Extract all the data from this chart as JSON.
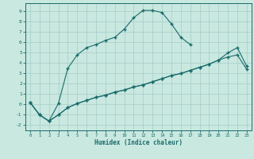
{
  "xlabel": "Humidex (Indice chaleur)",
  "bg_color": "#c8e8e0",
  "line_color": "#1a6b6b",
  "grid_color": "#a8ccc8",
  "xlim": [
    -0.5,
    23.5
  ],
  "ylim": [
    -2.5,
    9.8
  ],
  "xticks": [
    0,
    1,
    2,
    3,
    4,
    5,
    6,
    7,
    8,
    9,
    10,
    11,
    12,
    13,
    14,
    15,
    16,
    17,
    18,
    19,
    20,
    21,
    22,
    23
  ],
  "yticks": [
    -2,
    -1,
    0,
    1,
    2,
    3,
    4,
    5,
    6,
    7,
    8,
    9
  ],
  "line1_x": [
    0,
    1,
    2,
    3,
    4,
    5,
    6,
    7,
    8,
    9,
    10,
    11,
    12,
    13,
    14,
    15,
    16,
    17
  ],
  "line1_y": [
    0.2,
    -1.0,
    -1.6,
    0.1,
    3.5,
    4.8,
    5.5,
    5.8,
    6.2,
    6.5,
    7.3,
    8.4,
    9.1,
    9.1,
    8.9,
    7.8,
    6.5,
    5.8
  ],
  "line2_x": [
    0,
    1,
    2,
    3,
    4,
    5,
    6,
    7,
    8,
    9,
    10,
    11,
    12,
    13,
    14,
    15,
    16,
    17,
    18,
    19,
    20,
    21,
    22,
    23
  ],
  "line2_y": [
    0.2,
    -1.0,
    -1.6,
    -1.0,
    -0.3,
    0.1,
    0.4,
    0.7,
    0.9,
    1.2,
    1.4,
    1.7,
    1.9,
    2.2,
    2.5,
    2.8,
    3.0,
    3.3,
    3.6,
    3.9,
    4.3,
    5.0,
    5.5,
    3.7
  ],
  "line3_x": [
    0,
    1,
    2,
    3,
    4,
    5,
    6,
    7,
    8,
    9,
    10,
    11,
    12,
    13,
    14,
    15,
    16,
    17,
    18,
    19,
    20,
    21,
    22,
    23
  ],
  "line3_y": [
    0.2,
    -1.0,
    -1.6,
    -1.0,
    -0.3,
    0.1,
    0.4,
    0.7,
    0.9,
    1.2,
    1.4,
    1.7,
    1.9,
    2.2,
    2.5,
    2.8,
    3.0,
    3.3,
    3.6,
    3.9,
    4.3,
    4.6,
    4.8,
    3.4
  ]
}
